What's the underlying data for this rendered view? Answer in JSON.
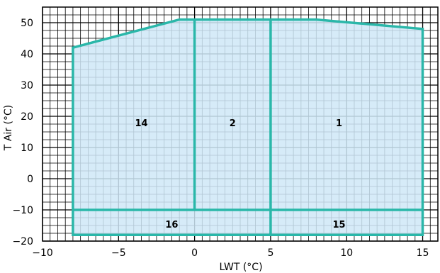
{
  "chart_data": {
    "type": "area",
    "title": "",
    "xlabel": "LWT (°C)",
    "ylabel": "T Air (°C)",
    "xlim": [
      -10,
      16
    ],
    "ylim": [
      -20,
      55
    ],
    "x_ticks": [
      -10,
      -5,
      0,
      5,
      10,
      15
    ],
    "y_ticks": [
      -20,
      -10,
      0,
      10,
      20,
      30,
      40,
      50
    ],
    "x_tick_labels": [
      "−10",
      "−5",
      "0",
      "5",
      "10",
      "15"
    ],
    "y_tick_labels": [
      "−20",
      "−10",
      "0",
      "10",
      "20",
      "30",
      "40",
      "50"
    ],
    "grid": true,
    "minor_grid": {
      "x_step": 0.5,
      "y_step": 2.5
    },
    "colors": {
      "outline": "#2ab7a9",
      "fill": "#cfe8f7",
      "grid": "#000000"
    },
    "envelope": [
      [
        -8,
        -18
      ],
      [
        -8,
        42
      ],
      [
        -1,
        51
      ],
      [
        8,
        51
      ],
      [
        15,
        48
      ],
      [
        15,
        -18
      ]
    ],
    "internal_lines": [
      {
        "from": [
          0,
          -10
        ],
        "to": [
          0,
          51
        ]
      },
      {
        "from": [
          5,
          -18
        ],
        "to": [
          5,
          51
        ]
      },
      {
        "from": [
          -8,
          -10
        ],
        "to": [
          15,
          -10
        ]
      }
    ],
    "regions": [
      {
        "label": "14",
        "x": -3.5,
        "y": 18
      },
      {
        "label": "2",
        "x": 2.5,
        "y": 18
      },
      {
        "label": "1",
        "x": 9.5,
        "y": 18
      },
      {
        "label": "16",
        "x": -1.5,
        "y": -14.5
      },
      {
        "label": "15",
        "x": 9.5,
        "y": -14.5
      }
    ]
  }
}
